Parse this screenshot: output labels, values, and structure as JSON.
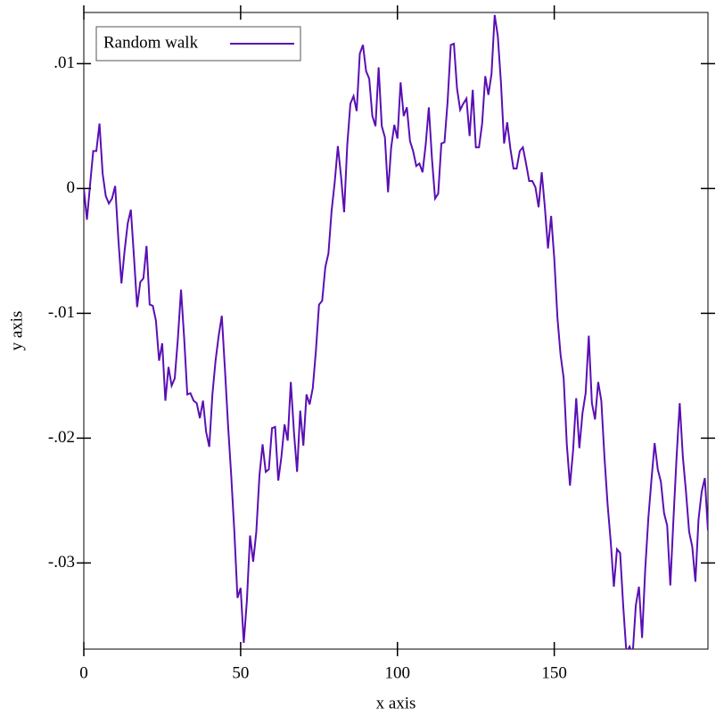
{
  "chart_data": {
    "type": "line",
    "x_label": "x axis",
    "y_label": "y axis",
    "x": [
      0,
      1,
      2,
      3,
      4,
      5,
      6,
      7,
      8,
      9,
      10,
      11,
      12,
      13,
      14,
      15,
      16,
      17,
      18,
      19,
      20,
      21,
      22,
      23,
      24,
      25,
      26,
      27,
      28,
      29,
      30,
      31,
      32,
      33,
      34,
      35,
      36,
      37,
      38,
      39,
      40,
      41,
      42,
      43,
      44,
      45,
      46,
      47,
      48,
      49,
      50,
      51,
      52,
      53,
      54,
      55,
      56,
      57,
      58,
      59,
      60,
      61,
      62,
      63,
      64,
      65,
      66,
      67,
      68,
      69,
      70,
      71,
      72,
      73,
      74,
      75,
      76,
      77,
      78,
      79,
      80,
      81,
      82,
      83,
      84,
      85,
      86,
      87,
      88,
      89,
      90,
      91,
      92,
      93,
      94,
      95,
      96,
      97,
      98,
      99,
      100,
      101,
      102,
      103,
      104,
      105,
      106,
      107,
      108,
      109,
      110,
      111,
      112,
      113,
      114,
      115,
      116,
      117,
      118,
      119,
      120,
      121,
      122,
      123,
      124,
      125,
      126,
      127,
      128,
      129,
      130,
      131,
      132,
      133,
      134,
      135,
      136,
      137,
      138,
      139,
      140,
      141,
      142,
      143,
      144,
      145,
      146,
      147,
      148,
      149,
      150,
      151,
      152,
      153,
      154,
      155,
      156,
      157,
      158,
      159,
      160,
      161,
      162,
      163,
      164,
      165,
      166,
      167,
      168,
      169,
      170,
      171,
      172,
      173,
      174,
      175,
      176,
      177,
      178,
      179,
      180,
      181,
      182,
      183,
      184,
      185,
      186,
      187,
      188,
      189,
      190,
      191,
      192,
      193,
      194,
      195,
      196,
      197,
      198,
      199
    ],
    "series": [
      {
        "name": "Random walk",
        "color": "#5a0fb4",
        "values": [
          0,
          -0.0025,
          0.0003,
          0.003,
          0.003,
          0.0052,
          0.0012,
          -0.0006,
          -0.0012,
          -0.0008,
          0.0002,
          -0.004,
          -0.0076,
          -0.005,
          -0.0028,
          -0.0017,
          -0.0055,
          -0.0095,
          -0.0075,
          -0.0072,
          -0.0046,
          -0.0093,
          -0.0094,
          -0.0106,
          -0.0138,
          -0.0124,
          -0.017,
          -0.0143,
          -0.0158,
          -0.0152,
          -0.012,
          -0.0081,
          -0.012,
          -0.0165,
          -0.0164,
          -0.017,
          -0.0172,
          -0.0184,
          -0.017,
          -0.0195,
          -0.0207,
          -0.0165,
          -0.0138,
          -0.0118,
          -0.0102,
          -0.0145,
          -0.019,
          -0.023,
          -0.0275,
          -0.0328,
          -0.032,
          -0.0364,
          -0.033,
          -0.0278,
          -0.0299,
          -0.0275,
          -0.023,
          -0.0205,
          -0.0227,
          -0.0225,
          -0.0192,
          -0.0191,
          -0.0234,
          -0.0215,
          -0.0189,
          -0.0202,
          -0.0155,
          -0.0195,
          -0.0227,
          -0.0178,
          -0.0206,
          -0.0165,
          -0.0173,
          -0.016,
          -0.013,
          -0.0093,
          -0.009,
          -0.0063,
          -0.0052,
          -0.0018,
          0.0005,
          0.0034,
          0.001,
          -0.0019,
          0.0035,
          0.0068,
          0.0074,
          0.0062,
          0.0108,
          0.0115,
          0.0094,
          0.0088,
          0.0058,
          0.005,
          0.0097,
          0.005,
          0.0041,
          -0.0003,
          0.0033,
          0.0051,
          0.004,
          0.0085,
          0.0058,
          0.0065,
          0.0038,
          0.003,
          0.0018,
          0.002,
          0.0013,
          0.0035,
          0.0065,
          0.0024,
          -0.0008,
          -0.0004,
          0.0036,
          0.0037,
          0.007,
          0.0115,
          0.0116,
          0.008,
          0.0063,
          0.0068,
          0.0072,
          0.0042,
          0.0079,
          0.0033,
          0.0033,
          0.0052,
          0.009,
          0.0075,
          0.0092,
          0.0139,
          0.0122,
          0.0085,
          0.0036,
          0.0053,
          0.0032,
          0.0016,
          0.0016,
          0.003,
          0.0033,
          0.002,
          0.0006,
          0.0006,
          0.0001,
          -0.0015,
          0.0013,
          -0.0015,
          -0.0048,
          -0.0022,
          -0.0056,
          -0.0103,
          -0.0133,
          -0.0152,
          -0.0205,
          -0.0238,
          -0.021,
          -0.0168,
          -0.0208,
          -0.018,
          -0.0164,
          -0.0118,
          -0.0172,
          -0.0185,
          -0.0155,
          -0.017,
          -0.0215,
          -0.0253,
          -0.0283,
          -0.0319,
          -0.0289,
          -0.0292,
          -0.0335,
          -0.0372,
          -0.0367,
          -0.0373,
          -0.0334,
          -0.0319,
          -0.036,
          -0.0305,
          -0.0264,
          -0.0233,
          -0.0204,
          -0.0225,
          -0.0235,
          -0.026,
          -0.027,
          -0.0318,
          -0.0265,
          -0.0215,
          -0.0172,
          -0.0215,
          -0.0243,
          -0.0275,
          -0.0287,
          -0.0315,
          -0.0265,
          -0.0243,
          -0.0232,
          -0.0274
        ]
      }
    ],
    "xlim": [
      0,
      199
    ],
    "ylim": [
      -0.0369,
      0.0141
    ],
    "xticks": [
      0,
      50,
      100,
      150
    ],
    "yticks": [
      {
        "value": 0.01,
        "label": ".01"
      },
      0,
      {
        "value": -0.01,
        "label": "-.01"
      },
      {
        "value": -0.02,
        "label": "-.02"
      },
      {
        "value": -0.03,
        "label": "-.03"
      }
    ],
    "legend": "top-left"
  }
}
